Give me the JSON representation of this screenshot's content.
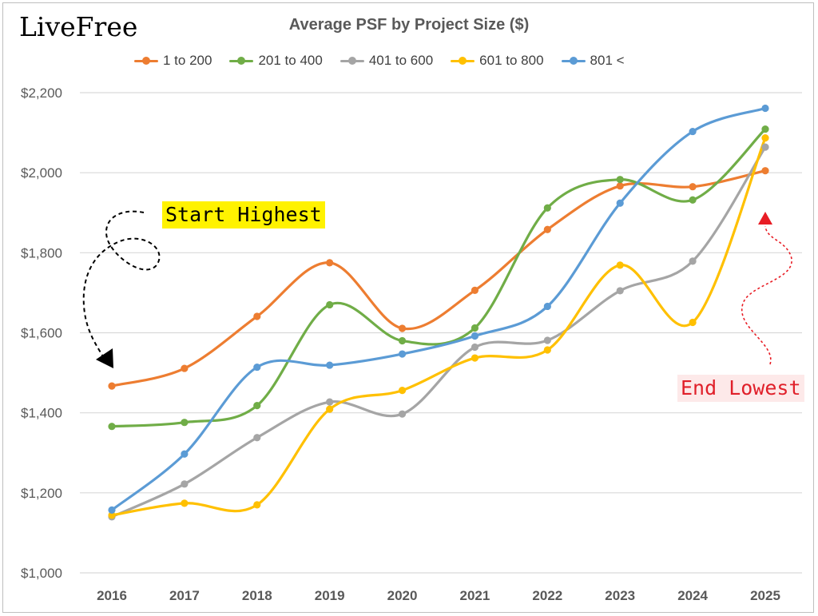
{
  "brand": "LiveFree",
  "annotations": {
    "start": "Start Highest",
    "end": "End Lowest"
  },
  "colors": {
    "s1": "#ED7D31",
    "s2": "#70AD47",
    "s3": "#A5A5A5",
    "s4": "#FFC000",
    "s5": "#5B9BD5",
    "grid": "#d9d9d9",
    "axis_text": "#595959"
  },
  "chart_data": {
    "type": "line",
    "title": "Average PSF by Project Size ($)",
    "xlabel": "",
    "ylabel": "",
    "categories": [
      "2016",
      "2017",
      "2018",
      "2019",
      "2020",
      "2021",
      "2022",
      "2023",
      "2024",
      "2025"
    ],
    "ylim": [
      1000,
      2200
    ],
    "yticks": [
      1000,
      1200,
      1400,
      1600,
      1800,
      2000,
      2200
    ],
    "ytick_labels": [
      "$1,000",
      "$1,200",
      "$1,400",
      "$1,600",
      "$1,800",
      "$2,000",
      "$2,200"
    ],
    "grid": true,
    "legend": "top",
    "smooth": true,
    "series": [
      {
        "name": "1 to 200",
        "color_key": "s1",
        "values": [
          1467,
          1511,
          1641,
          1775,
          1611,
          1706,
          1858,
          1967,
          1965,
          2005
        ]
      },
      {
        "name": "201 to 400",
        "color_key": "s2",
        "values": [
          1366,
          1376,
          1418,
          1670,
          1580,
          1612,
          1912,
          1983,
          1932,
          2109
        ]
      },
      {
        "name": "401 to 600",
        "color_key": "s3",
        "values": [
          1140,
          1222,
          1338,
          1427,
          1397,
          1564,
          1581,
          1705,
          1779,
          2064
        ]
      },
      {
        "name": "601 to 800",
        "color_key": "s4",
        "values": [
          1144,
          1174,
          1170,
          1409,
          1456,
          1537,
          1557,
          1769,
          1626,
          2087
        ]
      },
      {
        "name": "801 <",
        "color_key": "s5",
        "values": [
          1157,
          1297,
          1514,
          1519,
          1547,
          1592,
          1666,
          1924,
          2103,
          2161
        ]
      }
    ]
  }
}
